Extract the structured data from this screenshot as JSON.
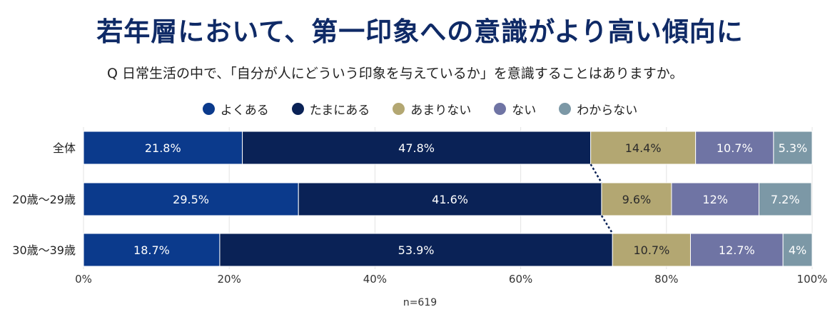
{
  "title": "若年層において、第一印象への意識がより高い傾向に",
  "question": "Q 日常生活の中で、「自分が人にどういう印象を与えているか」を意識することはありますか。",
  "sample_note": "n=619",
  "colors": {
    "よくある": "#0b3a8c",
    "たまにある": "#0a2256",
    "あまりない": "#b3a772",
    "ない": "#6f74a4",
    "わからない": "#7c98a6"
  },
  "chart_data": {
    "type": "bar",
    "orientation": "horizontal",
    "stacked": true,
    "categories": [
      "全体",
      "20歳〜29歳",
      "30歳〜39歳"
    ],
    "series": [
      {
        "name": "よくある",
        "values": [
          21.8,
          29.5,
          18.7
        ],
        "labels": [
          "21.8%",
          "29.5%",
          "18.7%"
        ]
      },
      {
        "name": "たまにある",
        "values": [
          47.8,
          41.6,
          53.9
        ],
        "labels": [
          "47.8%",
          "41.6%",
          "53.9%"
        ]
      },
      {
        "name": "あまりない",
        "values": [
          14.4,
          9.6,
          10.7
        ],
        "labels": [
          "14.4%",
          "9.6%",
          "10.7%"
        ]
      },
      {
        "name": "ない",
        "values": [
          10.7,
          12,
          12.7
        ],
        "labels": [
          "10.7%",
          "12%",
          "12.7%"
        ]
      },
      {
        "name": "わからない",
        "values": [
          5.3,
          7.2,
          4
        ],
        "labels": [
          "5.3%",
          "7.2%",
          "4%"
        ]
      }
    ],
    "xlim": [
      0,
      100
    ],
    "xticks": [
      "0%",
      "20%",
      "40%",
      "60%",
      "80%",
      "100%"
    ],
    "grid": true,
    "legend_position": "top-center"
  }
}
